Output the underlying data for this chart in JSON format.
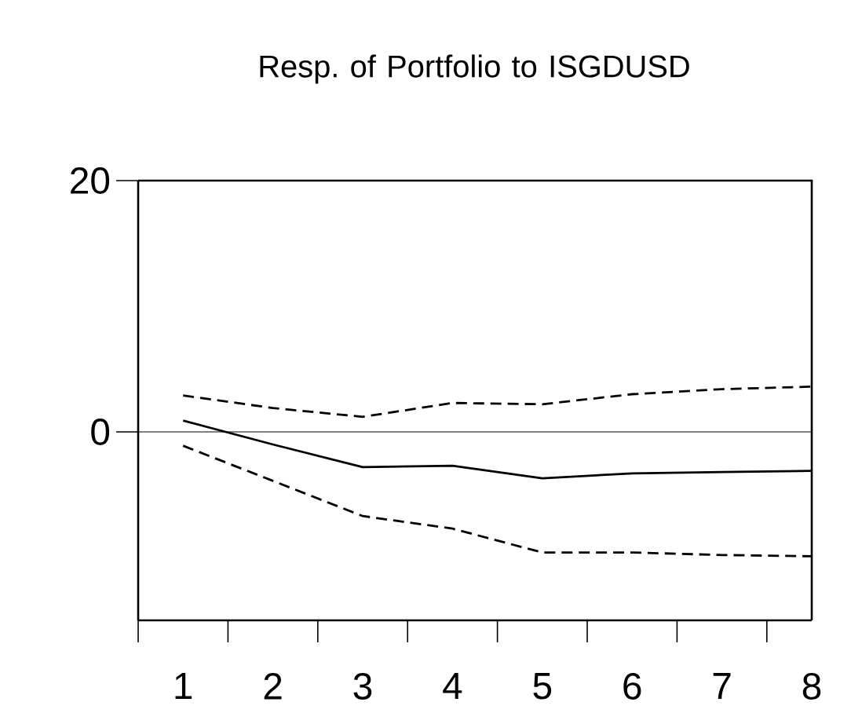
{
  "chart_data": {
    "type": "line",
    "title": "Resp. of Portfolio to ISGDUSD",
    "categories": [
      "1",
      "2",
      "3",
      "4",
      "5",
      "6",
      "7",
      "8"
    ],
    "series": [
      {
        "color": "#000000",
        "line_style": "solid",
        "values": [
          0.9,
          -1.0,
          -2.8,
          -2.7,
          -3.7,
          -3.3,
          -3.2,
          -3.1
        ]
      },
      {
        "color": "#000000",
        "line_style": "dashed",
        "values": [
          2.9,
          1.9,
          1.2,
          2.3,
          2.2,
          3.0,
          3.4,
          3.6
        ]
      },
      {
        "color": "#000000",
        "line_style": "dashed",
        "values": [
          -1.1,
          -3.9,
          -6.7,
          -7.7,
          -9.6,
          -9.6,
          -9.8,
          -9.9
        ]
      }
    ],
    "ylim": [
      -15,
      20
    ],
    "yticks": [
      0,
      20
    ],
    "ref_lines": [
      {
        "axis": "y",
        "value": 0,
        "color": "#000000"
      }
    ],
    "grid": false,
    "marker": "none"
  }
}
